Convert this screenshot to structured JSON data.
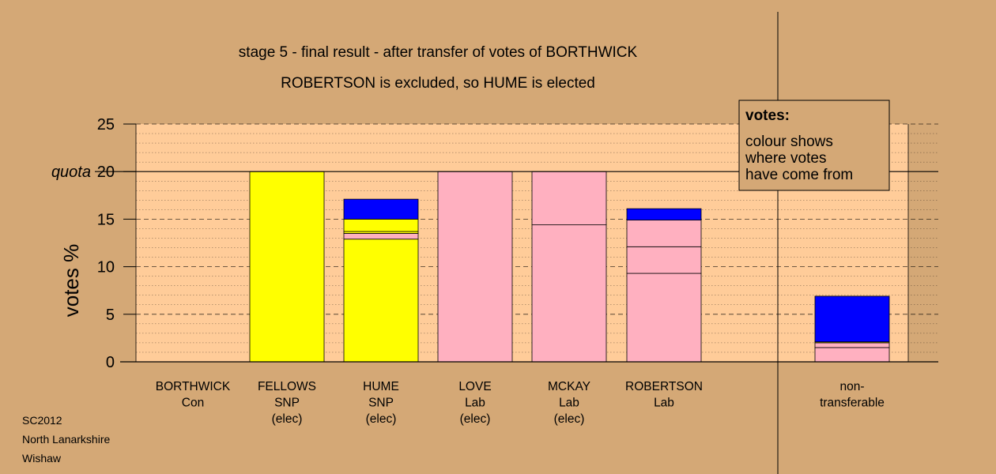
{
  "colors": {
    "background": "#d4a876",
    "plot_area": "#ffcc99",
    "SNP": "#ffff00",
    "Lab": "#ffb0c0",
    "transfer": "#0000ff"
  },
  "footer": [
    "SC2012",
    "North Lanarkshire",
    "Wishaw"
  ],
  "legend": {
    "title": "votes:",
    "lines": [
      "colour shows",
      "where votes",
      "have come from"
    ]
  },
  "chart_data": {
    "type": "bar",
    "title": "stage 5 - final result - after transfer of votes of BORTHWICK",
    "subtitle": "ROBERTSON is excluded, so HUME is elected",
    "ylabel": "votes %",
    "ylim": [
      0,
      25
    ],
    "yticks": [
      "0",
      "5",
      "10",
      "15",
      "20",
      "25"
    ],
    "quota": 20,
    "quota_label": "quota",
    "grid": "dotted minor, dashed major",
    "legend_position": "top-right",
    "categories": [
      {
        "lines": [
          "BORTHWICK",
          "Con"
        ],
        "segments": []
      },
      {
        "lines": [
          "FELLOWS",
          "SNP",
          "(elec)"
        ],
        "segments": [
          {
            "value": 20.0,
            "color": "SNP"
          }
        ]
      },
      {
        "lines": [
          "HUME",
          "SNP",
          "(elec)"
        ],
        "segments": [
          {
            "value": 12.9,
            "color": "SNP"
          },
          {
            "value": 0.6,
            "color": "Lab"
          },
          {
            "value": 0.2,
            "color": "SNP"
          },
          {
            "value": 1.3,
            "color": "SNP"
          },
          {
            "value": 2.1,
            "color": "transfer"
          }
        ]
      },
      {
        "lines": [
          "LOVE",
          "Lab",
          "(elec)"
        ],
        "segments": [
          {
            "value": 20.0,
            "color": "Lab"
          }
        ]
      },
      {
        "lines": [
          "MCKAY",
          "Lab",
          "(elec)"
        ],
        "segments": [
          {
            "value": 14.4,
            "color": "Lab"
          },
          {
            "value": 5.6,
            "color": "Lab"
          }
        ]
      },
      {
        "lines": [
          "ROBERTSON",
          "Lab"
        ],
        "segments": [
          {
            "value": 9.3,
            "color": "Lab"
          },
          {
            "value": 2.8,
            "color": "Lab"
          },
          {
            "value": 2.8,
            "color": "Lab"
          },
          {
            "value": 1.2,
            "color": "transfer"
          }
        ]
      },
      {
        "lines": [
          "non-",
          "transferable"
        ],
        "segments": [
          {
            "value": 1.5,
            "color": "Lab"
          },
          {
            "value": 0.5,
            "color": "Lab"
          },
          {
            "value": 0.1,
            "color": "SNP"
          },
          {
            "value": 4.8,
            "color": "transfer"
          }
        ]
      }
    ]
  }
}
